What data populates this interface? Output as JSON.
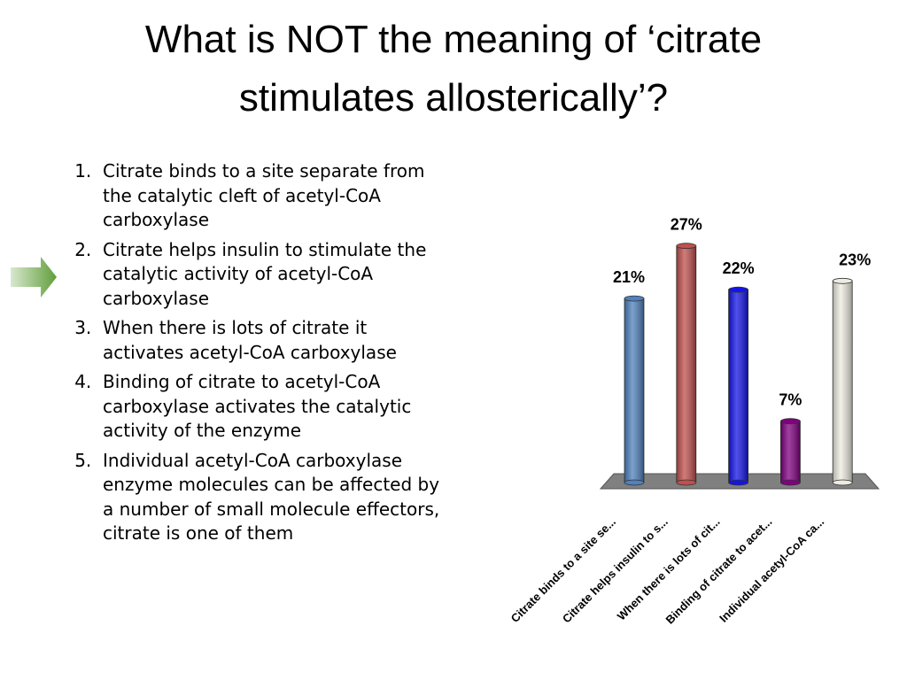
{
  "title": "What is NOT the meaning of ‘citrate stimulates allosterically’?",
  "items": [
    "Citrate binds to a site separate from the catalytic cleft of acetyl-CoA carboxylase",
    "Citrate helps insulin to stimulate the catalytic activity of acetyl-CoA carboxylase",
    "When there is lots of citrate it activates acetyl-CoA carboxylase",
    "Binding of citrate to acetyl-CoA carboxylase activates the catalytic activity of the enzyme",
    "Individual acetyl-CoA carboxylase enzyme molecules can be affected by a number of small molecule effectors, citrate is one of them"
  ],
  "chart_data": {
    "type": "bar",
    "categories": [
      "Citrate binds to a site se...",
      "Citrate helps insulin to s...",
      "When there is lots of cit...",
      "Binding of citrate to acet...",
      "Individual acetyl-CoA ca..."
    ],
    "values": [
      21,
      27,
      22,
      7,
      23
    ],
    "value_labels": [
      "21%",
      "27%",
      "22%",
      "7%",
      "23%"
    ],
    "colors": [
      "#4f81bd",
      "#c0504d",
      "#1414e6",
      "#800080",
      "#eeece1"
    ]
  }
}
